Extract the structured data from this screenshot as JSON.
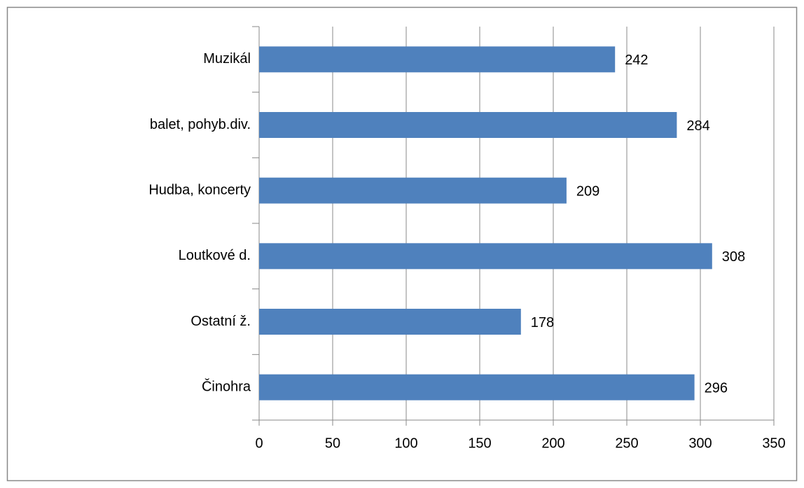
{
  "chart_data": {
    "type": "bar",
    "orientation": "horizontal",
    "categories": [
      "Muzikál",
      "balet, pohyb.div.",
      "Hudba, koncerty",
      "Loutkové d.",
      "Ostatní ž.",
      "Činohra"
    ],
    "values": [
      242,
      284,
      209,
      308,
      178,
      296
    ],
    "color": "#4f81bd",
    "xlim": [
      0,
      350
    ],
    "xticks": [
      0,
      50,
      100,
      150,
      200,
      250,
      300,
      350
    ],
    "grid": true
  }
}
